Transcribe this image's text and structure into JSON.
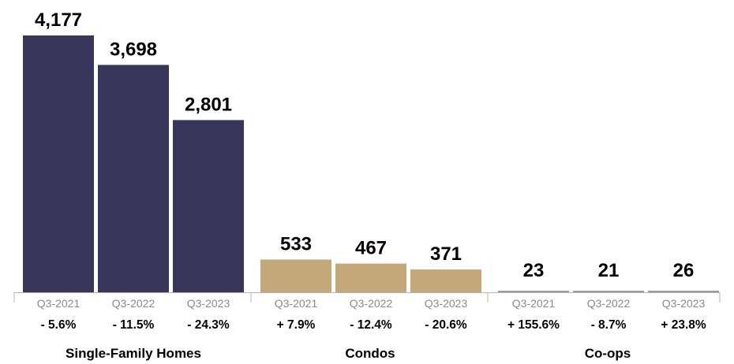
{
  "chart_data": {
    "type": "bar",
    "title": "",
    "xlabel": "",
    "ylabel": "",
    "ylim": [
      0,
      4177
    ],
    "grid": false,
    "legend": "none",
    "groups": [
      {
        "name": "Single-Family Homes",
        "color": "#38365a",
        "bars": [
          {
            "period": "Q3-2021",
            "value": 4177,
            "value_label": "4,177",
            "change": "- 5.6%"
          },
          {
            "period": "Q3-2022",
            "value": 3698,
            "value_label": "3,698",
            "change": "- 11.5%"
          },
          {
            "period": "Q3-2023",
            "value": 2801,
            "value_label": "2,801",
            "change": "- 24.3%"
          }
        ]
      },
      {
        "name": "Condos",
        "color": "#c4a87a",
        "bars": [
          {
            "period": "Q3-2021",
            "value": 533,
            "value_label": "533",
            "change": "+ 7.9%"
          },
          {
            "period": "Q3-2022",
            "value": 467,
            "value_label": "467",
            "change": "- 12.4%"
          },
          {
            "period": "Q3-2023",
            "value": 371,
            "value_label": "371",
            "change": "- 20.6%"
          }
        ]
      },
      {
        "name": "Co-ops",
        "color": "#9a9aa6",
        "bars": [
          {
            "period": "Q3-2021",
            "value": 23,
            "value_label": "23",
            "change": "+ 155.6%"
          },
          {
            "period": "Q3-2022",
            "value": 21,
            "value_label": "21",
            "change": "- 8.7%"
          },
          {
            "period": "Q3-2023",
            "value": 26,
            "value_label": "26",
            "change": "+ 23.8%"
          }
        ]
      }
    ]
  }
}
